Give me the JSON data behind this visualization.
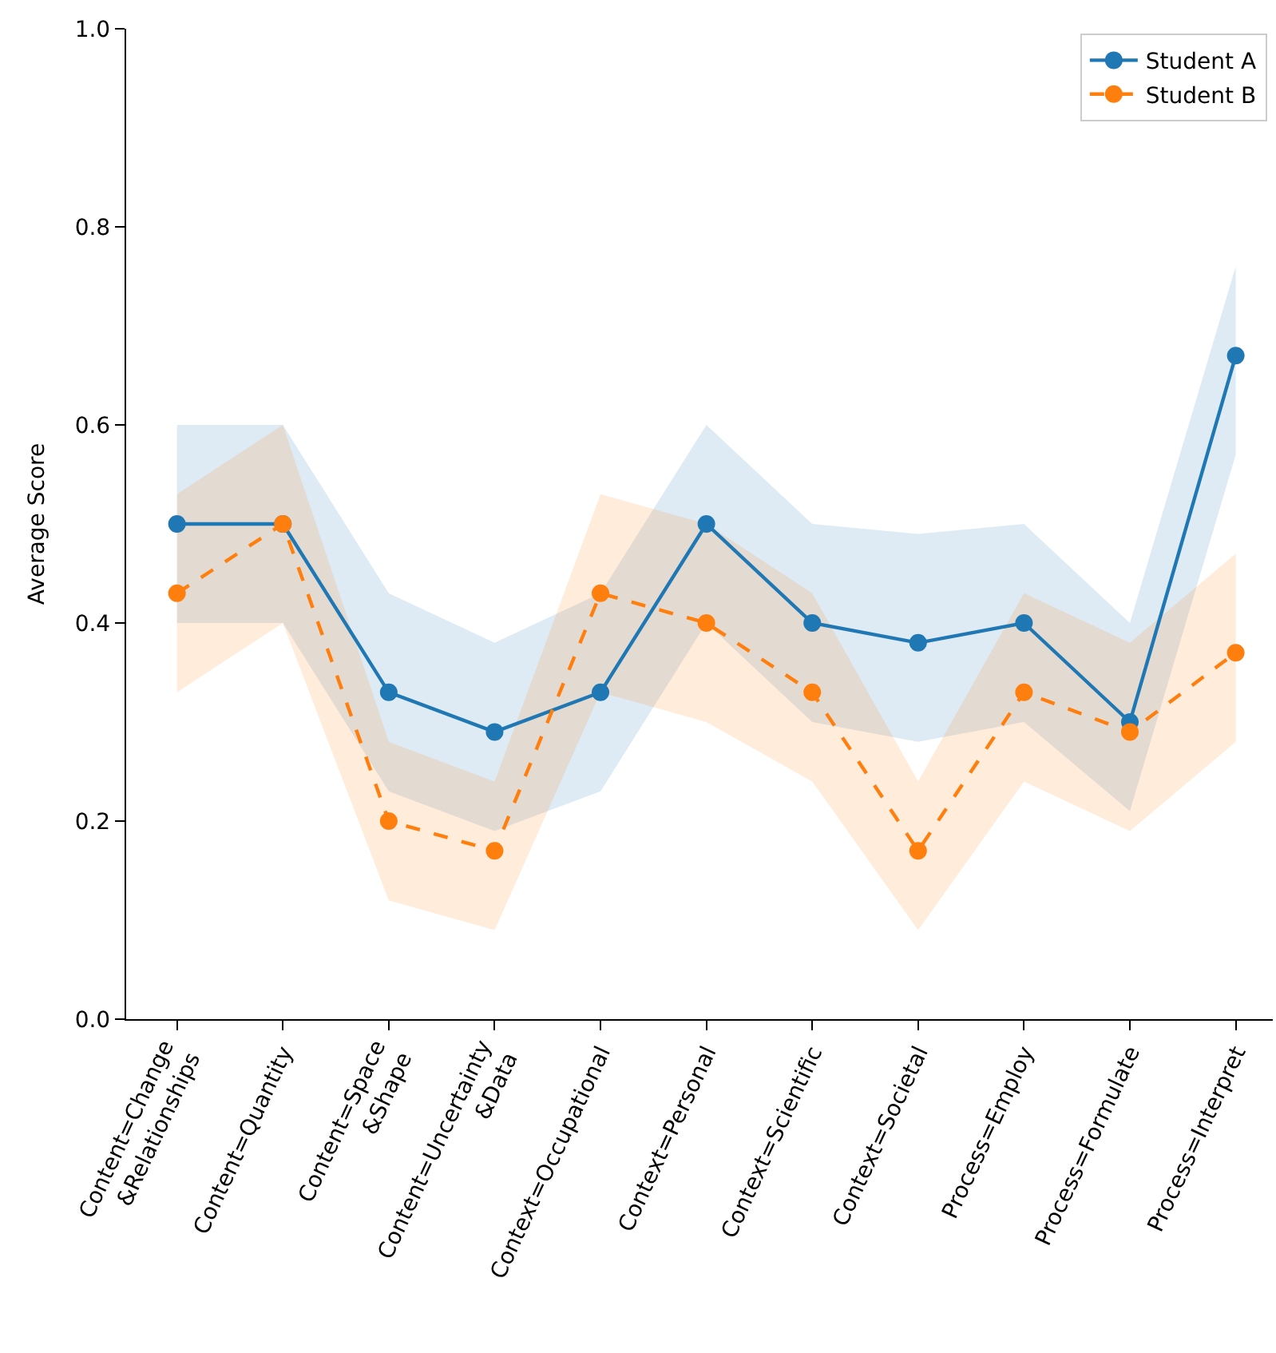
{
  "chart_data": {
    "type": "line",
    "ylabel": "Average Score",
    "categories": [
      "Content=Change\n&Relationships",
      "Content=Quantity",
      "Content=Space\n&Shape",
      "Content=Uncertainty\n&Data",
      "Context=Occupational",
      "Context=Personal",
      "Context=Scientific",
      "Context=Societal",
      "Process=Employ",
      "Process=Formulate",
      "Process=Interpret"
    ],
    "series": [
      {
        "name": "Student A",
        "color": "#1f77b4",
        "line_style": "solid",
        "values": [
          0.5,
          0.5,
          0.33,
          0.29,
          0.33,
          0.5,
          0.4,
          0.38,
          0.4,
          0.3,
          0.67
        ],
        "lower": [
          0.4,
          0.4,
          0.23,
          0.19,
          0.23,
          0.4,
          0.3,
          0.28,
          0.3,
          0.21,
          0.57
        ],
        "upper": [
          0.6,
          0.6,
          0.43,
          0.38,
          0.43,
          0.6,
          0.5,
          0.49,
          0.5,
          0.4,
          0.76
        ]
      },
      {
        "name": "Student B",
        "color": "#ff7f0e",
        "line_style": "dashed",
        "values": [
          0.43,
          0.5,
          0.2,
          0.17,
          0.43,
          0.4,
          0.33,
          0.17,
          0.33,
          0.29,
          0.37
        ],
        "lower": [
          0.33,
          0.4,
          0.12,
          0.09,
          0.33,
          0.3,
          0.24,
          0.09,
          0.24,
          0.19,
          0.28
        ],
        "upper": [
          0.53,
          0.6,
          0.28,
          0.24,
          0.53,
          0.5,
          0.43,
          0.24,
          0.43,
          0.38,
          0.47
        ]
      }
    ],
    "ylim": [
      0,
      1
    ],
    "yticks": [
      {
        "value": 0,
        "label": "0.0"
      },
      {
        "value": 0.2,
        "label": "0.2"
      },
      {
        "value": 0.4,
        "label": "0.4"
      },
      {
        "value": 0.6,
        "label": "0.6"
      },
      {
        "value": 0.8,
        "label": "0.8"
      },
      {
        "value": 1,
        "label": "1.0"
      }
    ],
    "legend": "top right",
    "marker": "circle"
  }
}
